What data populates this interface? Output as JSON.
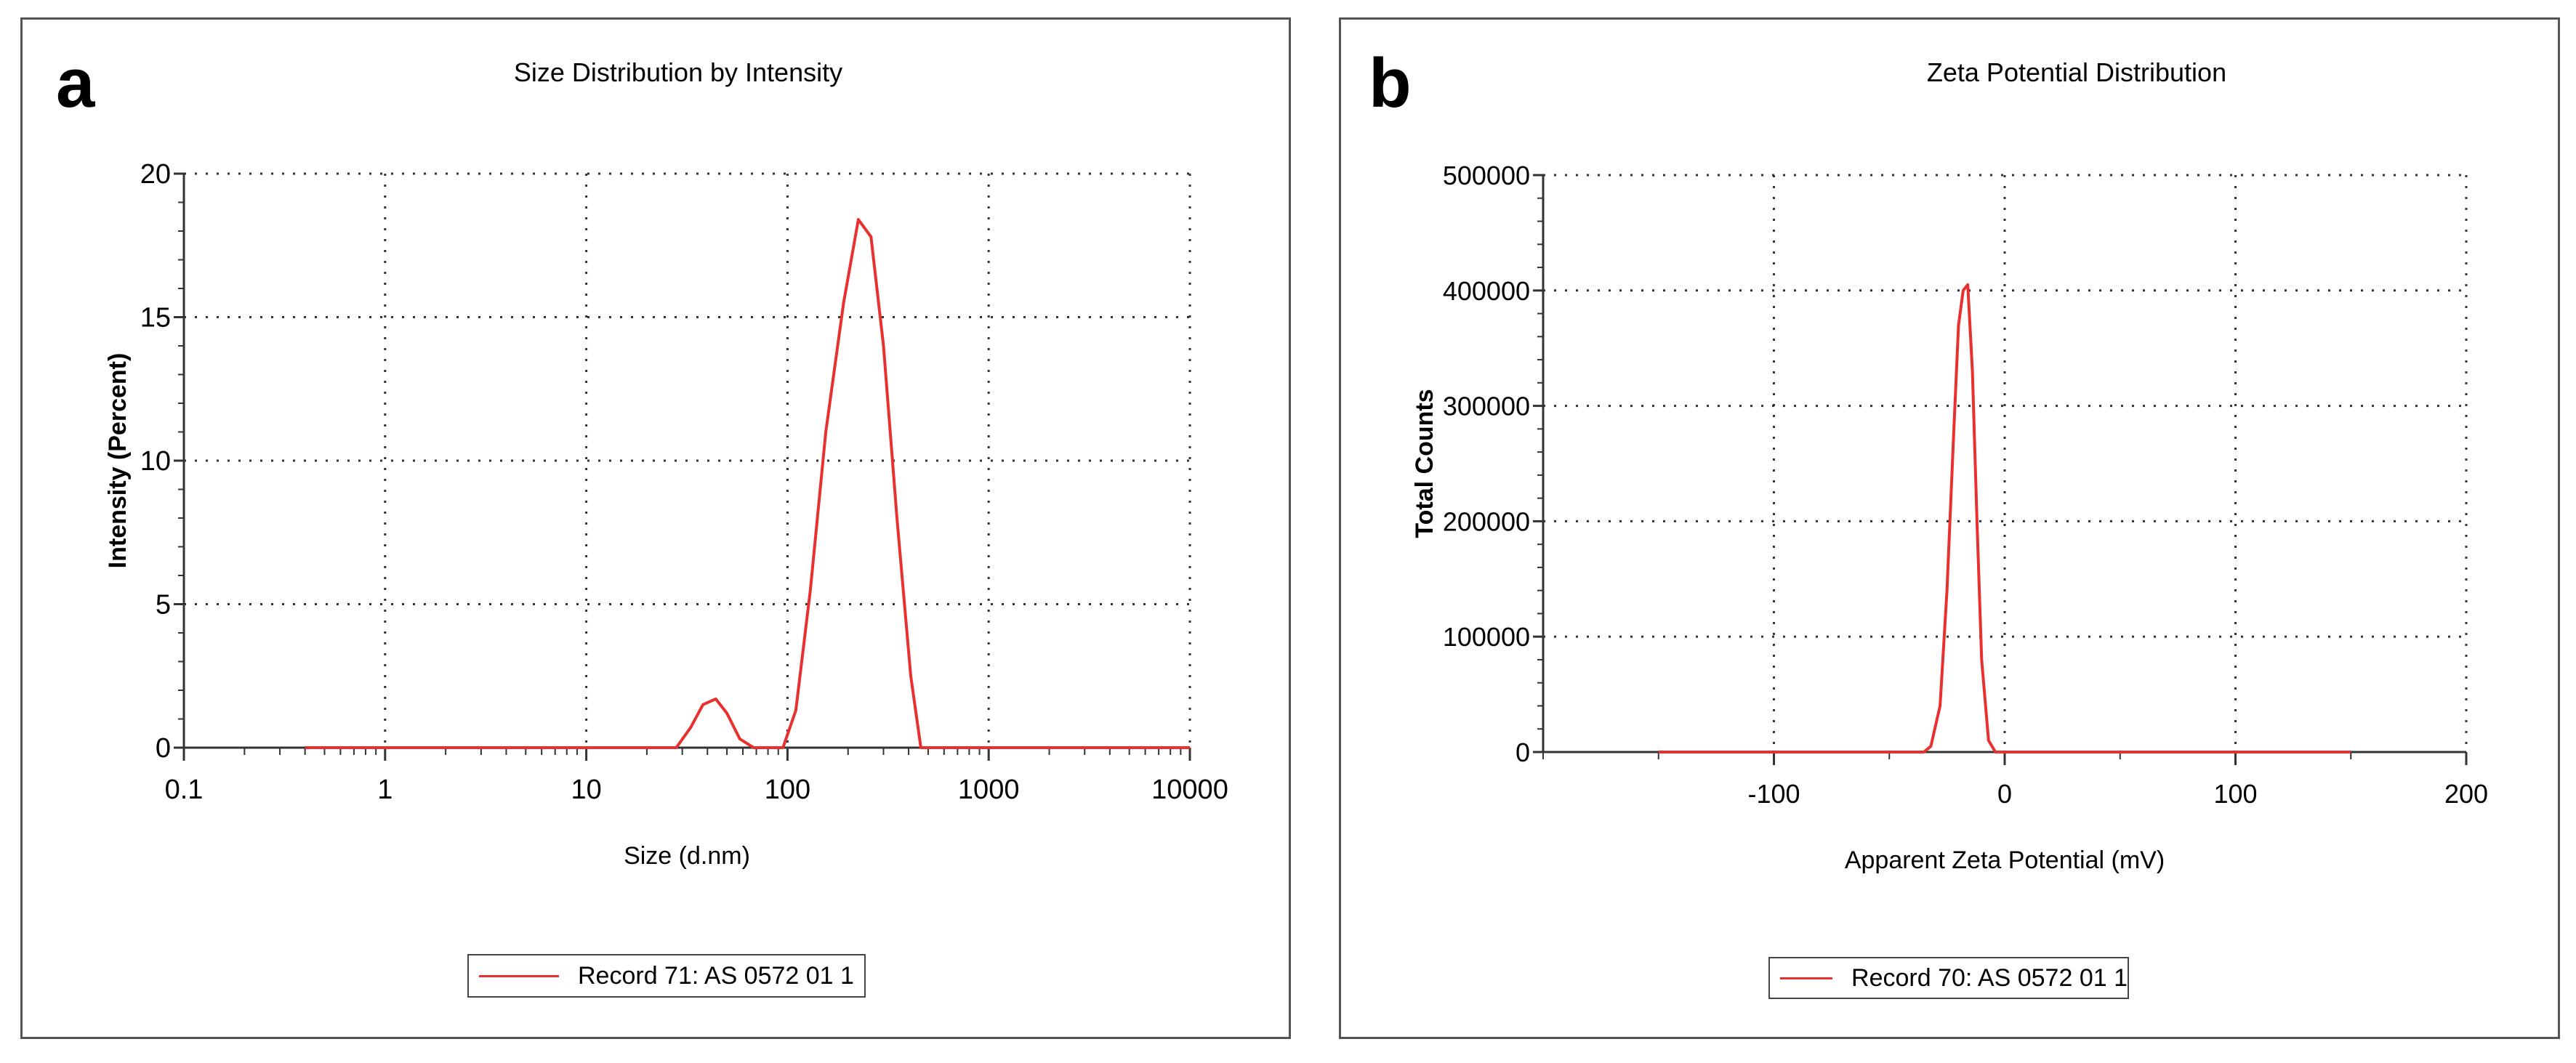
{
  "panels": {
    "a": {
      "letter": "a",
      "title": "Size Distribution by Intensity",
      "legend": "Record 71: AS 0572 01 1"
    },
    "b": {
      "letter": "b",
      "title": "Zeta Potential Distribution",
      "legend": "Record 70: AS 0572 01 1"
    }
  },
  "colors": {
    "series": "#e8312f",
    "grid": "#333333",
    "frame": "#555555"
  },
  "chart_data": [
    {
      "type": "line",
      "title": "Size Distribution by Intensity",
      "xlabel": "Size (d.nm)",
      "ylabel": "Intensity (Percent)",
      "xscale": "log",
      "xlim": [
        0.1,
        10000
      ],
      "ylim": [
        0,
        20
      ],
      "xticks": [
        0.1,
        1,
        10,
        100,
        1000,
        10000
      ],
      "xtick_labels": [
        "0.1",
        "1",
        "10",
        "100",
        "1000",
        "10000"
      ],
      "yticks": [
        0,
        5,
        10,
        15,
        20
      ],
      "ytick_labels": [
        "0",
        "5",
        "10",
        "15",
        "20"
      ],
      "grid": true,
      "legend_position": "bottom-center",
      "series": [
        {
          "name": "Record 71: AS 0572 01 1",
          "x": [
            0.4,
            5,
            28,
            33,
            38,
            44,
            50,
            58,
            68,
            80,
            95,
            110,
            130,
            155,
            190,
            225,
            260,
            300,
            350,
            410,
            460,
            1000,
            10000
          ],
          "y": [
            0,
            0,
            0,
            0.7,
            1.5,
            1.7,
            1.2,
            0.3,
            0,
            0,
            0,
            1.3,
            5.5,
            11,
            15.5,
            18.4,
            17.8,
            14,
            8,
            2.5,
            0,
            0,
            0
          ]
        }
      ]
    },
    {
      "type": "line",
      "title": "Zeta Potential Distribution",
      "xlabel": "Apparent Zeta Potential (mV)",
      "ylabel": "Total Counts",
      "xlim": [
        -200,
        200
      ],
      "ylim": [
        0,
        500000
      ],
      "xticks": [
        -100,
        0,
        100,
        200
      ],
      "xtick_labels": [
        "-100",
        "0",
        "100",
        "200"
      ],
      "yticks": [
        0,
        100000,
        200000,
        300000,
        400000,
        500000
      ],
      "ytick_labels": [
        "0",
        "100000",
        "200000",
        "300000",
        "400000",
        "500000"
      ],
      "grid": true,
      "legend_position": "bottom-center",
      "series": [
        {
          "name": "Record 70: AS 0572 01 1",
          "x": [
            -150,
            -35,
            -32,
            -28,
            -25,
            -22,
            -20,
            -18,
            -16,
            -14,
            -12,
            -10,
            -7,
            -4,
            0,
            150
          ],
          "y": [
            0,
            0,
            5000,
            40000,
            140000,
            280000,
            370000,
            400000,
            405000,
            330000,
            200000,
            80000,
            10000,
            0,
            0,
            0
          ]
        }
      ]
    }
  ]
}
